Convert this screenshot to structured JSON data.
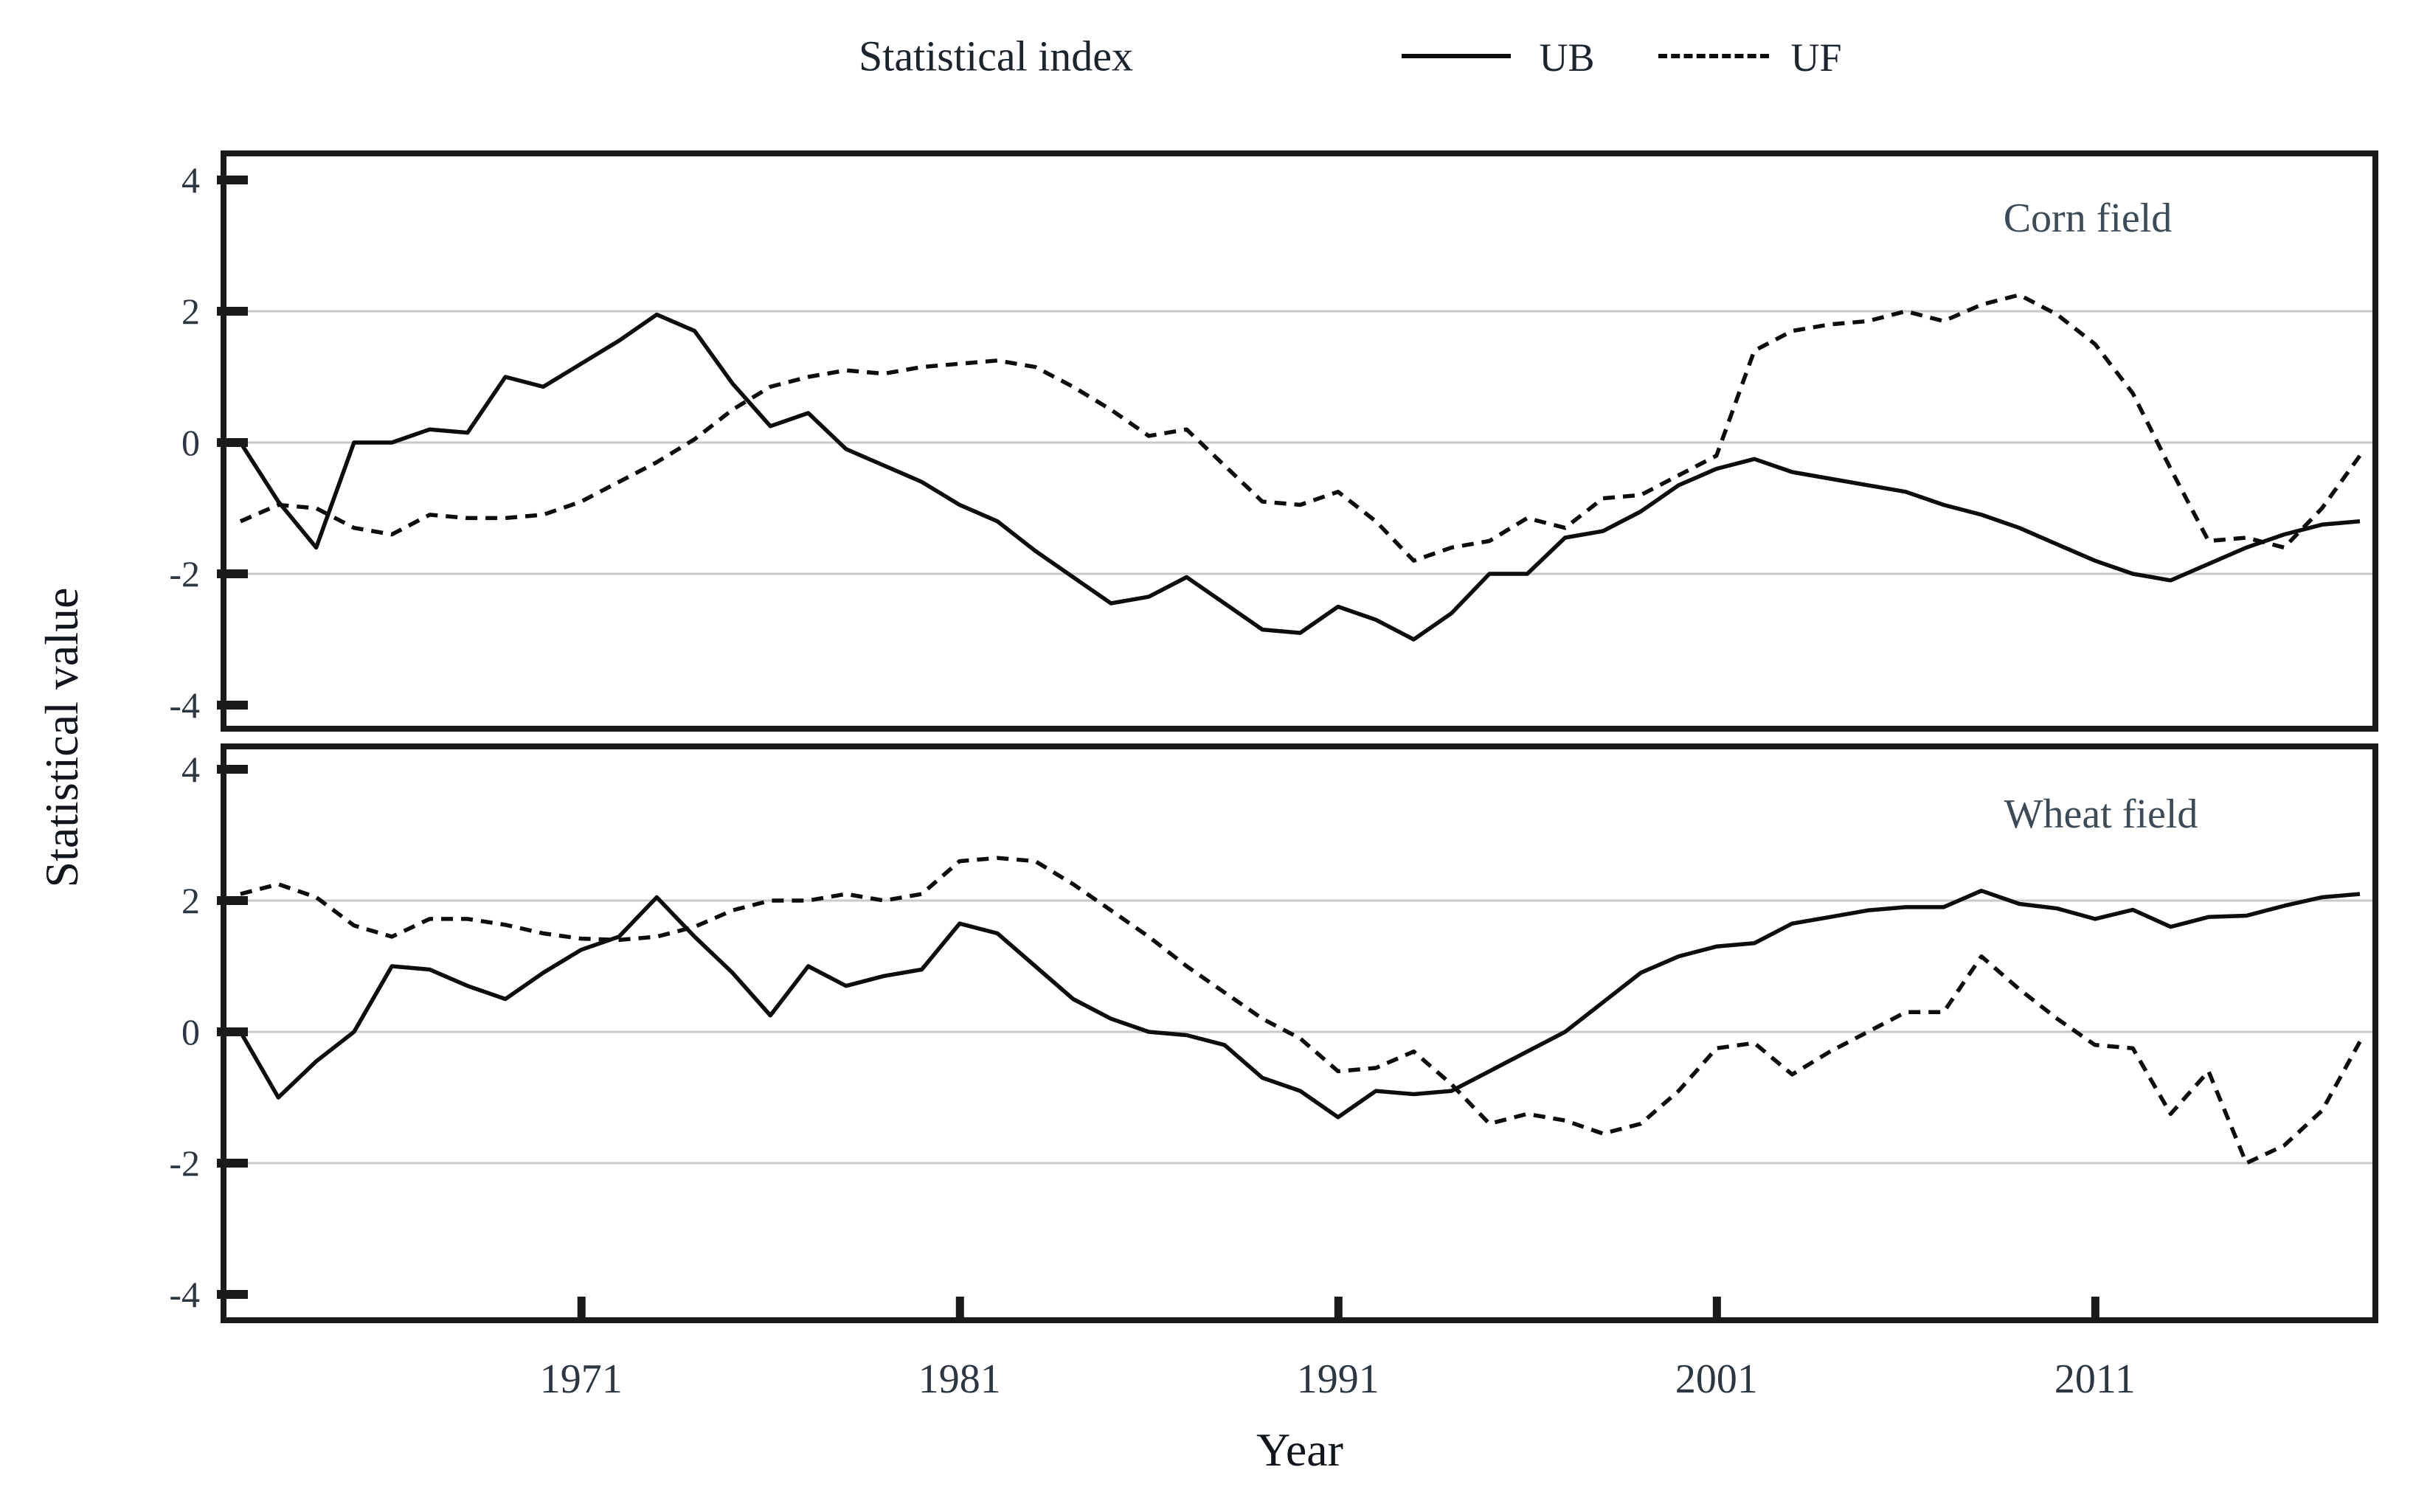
{
  "legend": {
    "title": "Statistical index",
    "series": [
      {
        "label": "UB",
        "line_style": "solid"
      },
      {
        "label": "UF",
        "line_style": "dashed"
      }
    ]
  },
  "axes": {
    "x_label": "Year",
    "y_label": "Statistical value",
    "x_ticks": [
      1971,
      1981,
      1991,
      2001,
      2011
    ],
    "y_ticks": [
      4,
      2,
      0,
      -2,
      -4
    ],
    "gridlines_at": [
      2,
      0,
      -2
    ],
    "y_range": [
      -4.6,
      4.4
    ]
  },
  "colors": {
    "line": "#0d0d0d",
    "gridline": "#c9c9c9",
    "panel_border": "#1a1a1a",
    "tick_label": "#2d3742",
    "panel_label": "#3d4a57",
    "background": "#ffffff"
  },
  "chart_data": {
    "type": "line",
    "xlabel": "Year",
    "ylabel": "Statistical value",
    "ylim": [
      -4.6,
      4.4
    ],
    "xticks": [
      1971,
      1981,
      1991,
      2001,
      2011
    ],
    "yticks": [
      4,
      2,
      0,
      -2,
      -4
    ],
    "grid": "horizontal at -2, 0, 2",
    "legend_position": "top",
    "x": [
      1962,
      1963,
      1964,
      1965,
      1966,
      1967,
      1968,
      1969,
      1970,
      1971,
      1972,
      1973,
      1974,
      1975,
      1976,
      1977,
      1978,
      1979,
      1980,
      1981,
      1982,
      1983,
      1984,
      1985,
      1986,
      1987,
      1988,
      1989,
      1990,
      1991,
      1992,
      1993,
      1994,
      1995,
      1996,
      1997,
      1998,
      1999,
      2000,
      2001,
      2002,
      2003,
      2004,
      2005,
      2006,
      2007,
      2008,
      2009,
      2010,
      2011,
      2012,
      2013,
      2014,
      2015,
      2016,
      2017,
      2018
    ],
    "panels": [
      {
        "title": "Corn field",
        "series": [
          {
            "name": "UB",
            "style": "solid",
            "values": [
              0.0,
              -0.9,
              -1.6,
              0.0,
              0.0,
              0.2,
              0.15,
              1.0,
              0.85,
              1.2,
              1.55,
              1.95,
              1.7,
              0.9,
              0.25,
              0.45,
              -0.1,
              -0.35,
              -0.6,
              -0.95,
              -1.2,
              -1.65,
              -2.05,
              -2.45,
              -2.35,
              -2.05,
              -2.45,
              -2.85,
              -2.9,
              -2.5,
              -2.7,
              -3.0,
              -2.6,
              -2.0,
              -2.0,
              -1.45,
              -1.35,
              -1.05,
              -0.65,
              -0.4,
              -0.25,
              -0.45,
              -0.55,
              -0.65,
              -0.75,
              -0.95,
              -1.1,
              -1.3,
              -1.55,
              -1.8,
              -2.0,
              -2.1,
              -1.85,
              -1.6,
              -1.4,
              -1.25,
              -1.2
            ]
          },
          {
            "name": "UF",
            "style": "dashed",
            "values": [
              -1.2,
              -0.95,
              -1.0,
              -1.3,
              -1.4,
              -1.1,
              -1.15,
              -1.15,
              -1.1,
              -0.9,
              -0.6,
              -0.3,
              0.05,
              0.5,
              0.85,
              1.0,
              1.1,
              1.05,
              1.15,
              1.2,
              1.25,
              1.15,
              0.85,
              0.5,
              0.1,
              0.2,
              -0.35,
              -0.9,
              -0.95,
              -0.75,
              -1.2,
              -1.8,
              -1.6,
              -1.5,
              -1.15,
              -1.3,
              -0.85,
              -0.8,
              -0.5,
              -0.2,
              1.4,
              1.7,
              1.8,
              1.85,
              2.0,
              1.85,
              2.1,
              2.25,
              1.95,
              1.5,
              0.75,
              -0.4,
              -1.5,
              -1.45,
              -1.6,
              -1.0,
              -0.2
            ]
          }
        ]
      },
      {
        "title": "Wheat field",
        "series": [
          {
            "name": "UB",
            "style": "solid",
            "values": [
              0.0,
              -1.0,
              -0.45,
              0.0,
              1.0,
              0.95,
              0.7,
              0.5,
              0.9,
              1.25,
              1.45,
              2.05,
              1.45,
              0.9,
              0.25,
              1.0,
              0.7,
              0.85,
              0.95,
              1.65,
              1.5,
              1.0,
              0.5,
              0.2,
              0.0,
              -0.05,
              -0.2,
              -0.7,
              -0.9,
              -1.3,
              -0.9,
              -0.95,
              -0.9,
              -0.6,
              -0.3,
              0.0,
              0.45,
              0.9,
              1.15,
              1.3,
              1.35,
              1.65,
              1.75,
              1.85,
              1.9,
              1.9,
              2.15,
              1.95,
              1.88,
              1.72,
              1.86,
              1.6,
              1.75,
              1.77,
              1.92,
              2.05,
              2.1
            ]
          },
          {
            "name": "UF",
            "style": "dashed",
            "values": [
              2.1,
              2.25,
              2.05,
              1.62,
              1.45,
              1.72,
              1.72,
              1.63,
              1.5,
              1.42,
              1.4,
              1.45,
              1.6,
              1.85,
              2.0,
              2.0,
              2.1,
              2.0,
              2.1,
              2.6,
              2.65,
              2.6,
              2.25,
              1.85,
              1.45,
              1.0,
              0.6,
              0.2,
              -0.1,
              -0.6,
              -0.55,
              -0.3,
              -0.8,
              -1.4,
              -1.25,
              -1.35,
              -1.55,
              -1.4,
              -0.9,
              -0.25,
              -0.17,
              -0.65,
              -0.3,
              0.0,
              0.3,
              0.3,
              1.15,
              0.65,
              0.2,
              -0.2,
              -0.25,
              -1.25,
              -0.6,
              -2.0,
              -1.73,
              -1.2,
              -0.15
            ]
          }
        ]
      }
    ]
  }
}
